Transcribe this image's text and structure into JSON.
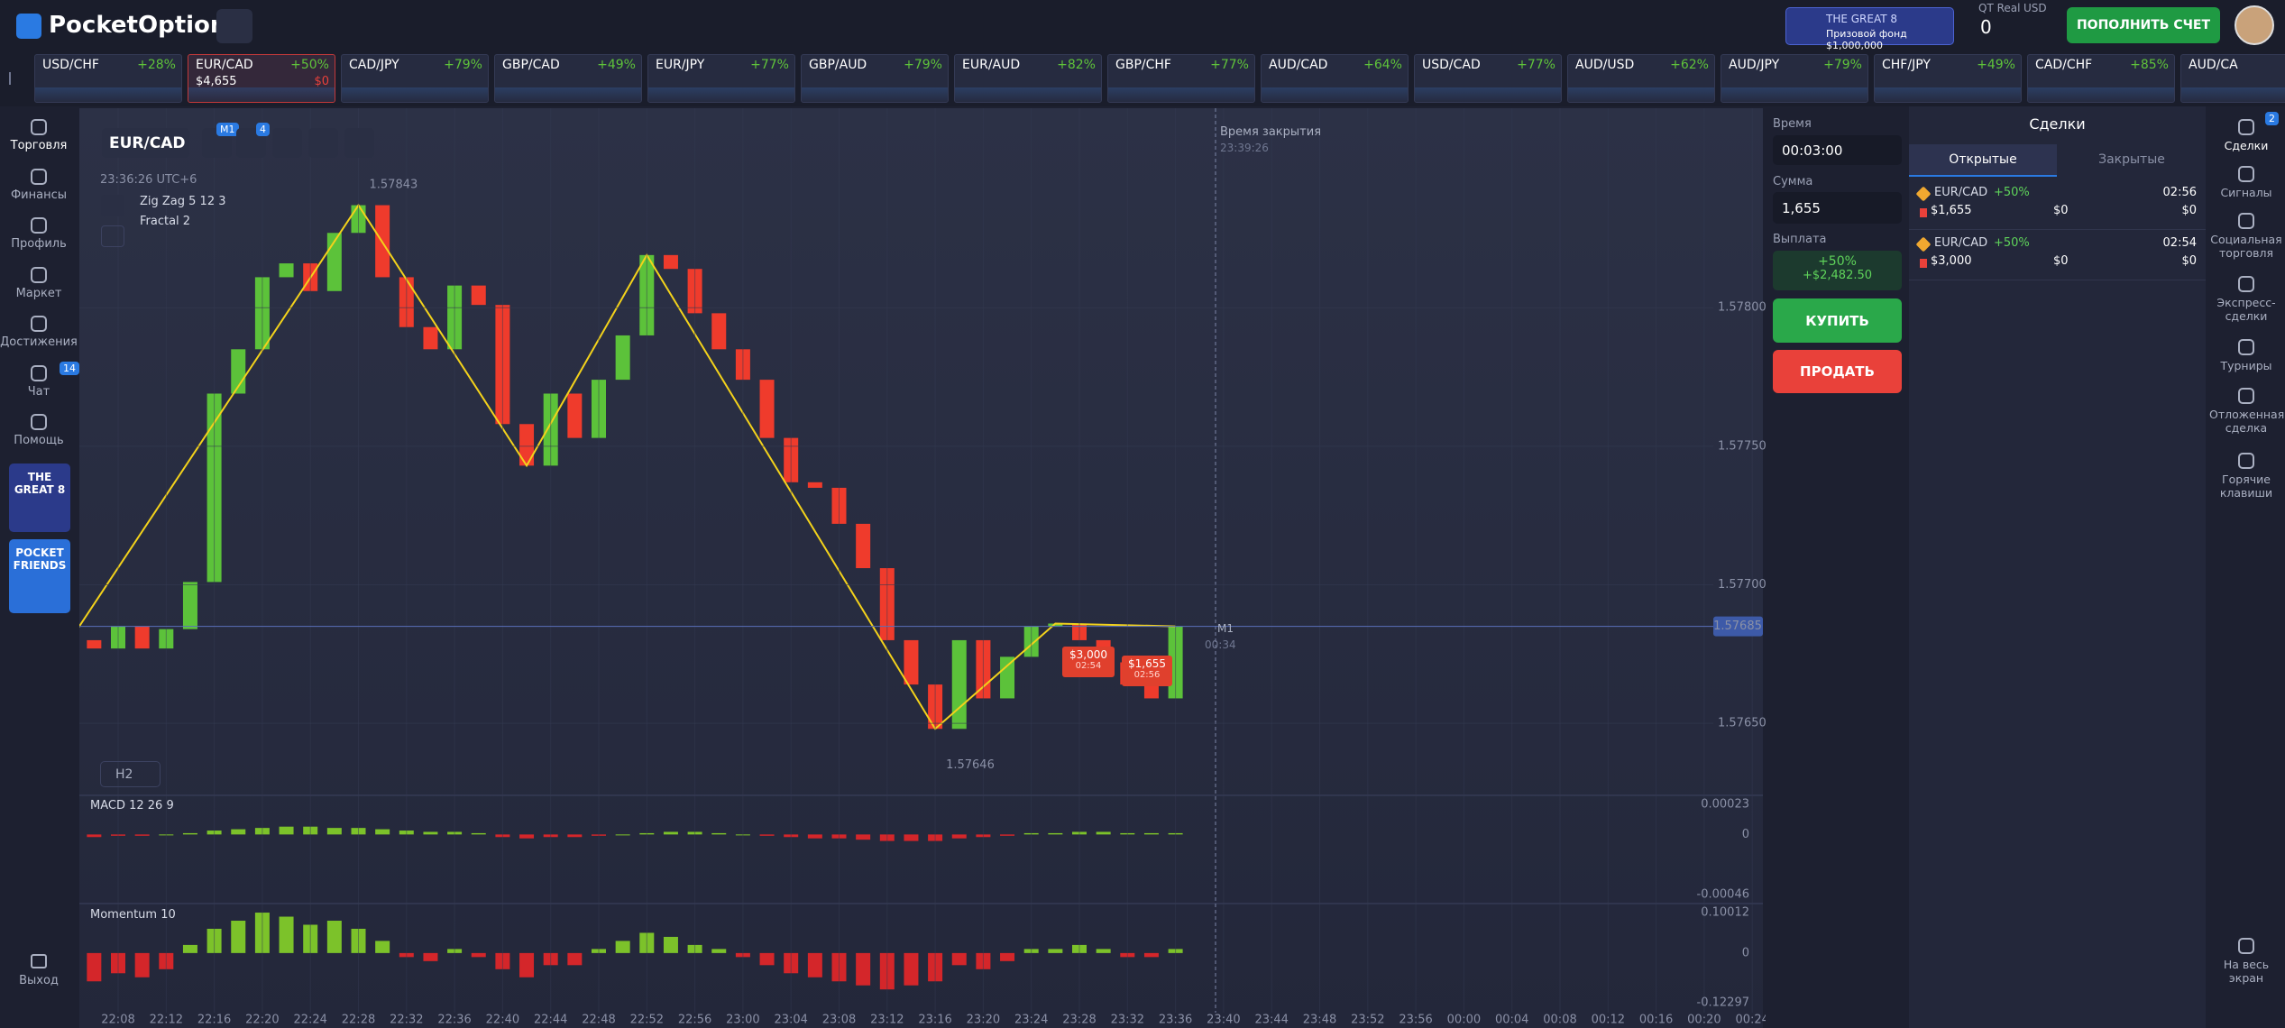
{
  "header": {
    "logo": "PocketOption",
    "banner_title": "THE GREAT 8",
    "banner_subtitle": "Призовой фонд $1,000,000",
    "account_type": "QT Real",
    "currency": "USD",
    "balance": "0",
    "deposit_button": "ПОПОЛНИТЬ СЧЕТ"
  },
  "ticker": [
    {
      "pair": "USD/CHF",
      "payout": "+28%"
    },
    {
      "pair": "EUR/CAD",
      "payout": "+50%",
      "amount": "$4,655",
      "profit": "$0"
    },
    {
      "pair": "CAD/JPY",
      "payout": "+79%"
    },
    {
      "pair": "GBP/CAD",
      "payout": "+49%"
    },
    {
      "pair": "EUR/JPY",
      "payout": "+77%"
    },
    {
      "pair": "GBP/AUD",
      "payout": "+79%"
    },
    {
      "pair": "EUR/AUD",
      "payout": "+82%"
    },
    {
      "pair": "GBP/CHF",
      "payout": "+77%"
    },
    {
      "pair": "AUD/CAD",
      "payout": "+64%"
    },
    {
      "pair": "USD/CAD",
      "payout": "+77%"
    },
    {
      "pair": "AUD/USD",
      "payout": "+62%"
    },
    {
      "pair": "AUD/JPY",
      "payout": "+79%"
    },
    {
      "pair": "CHF/JPY",
      "payout": "+49%"
    },
    {
      "pair": "CAD/CHF",
      "payout": "+85%"
    },
    {
      "pair": "AUD/CA"
    }
  ],
  "sidebar": [
    {
      "label": "Торговля"
    },
    {
      "label": "Финансы"
    },
    {
      "label": "Профиль"
    },
    {
      "label": "Маркет"
    },
    {
      "label": "Достижения"
    },
    {
      "label": "Чат",
      "badge": "14"
    },
    {
      "label": "Помощь"
    }
  ],
  "promos": [
    "THE GREAT 8",
    "POCKET FRIENDS"
  ],
  "logout": "Выход",
  "chart_toolbar": {
    "asset": "EUR/CAD",
    "timeframe_badge": "M1",
    "indicators_badge": "4",
    "timeframe": "H2"
  },
  "chart_data": {
    "type": "candlestick",
    "clock": "23:36:26 UTC+6",
    "indicators": [
      "Zig Zag 5 12 3",
      "Fractal 2"
    ],
    "closes": [
      1.5768,
      1.57677,
      1.57685,
      1.57677,
      1.57684,
      1.57701,
      1.57769,
      1.57785,
      1.57811,
      1.57816,
      1.57806,
      1.57827,
      1.57837,
      1.57811,
      1.57793,
      1.57785,
      1.57808,
      1.57801,
      1.57758,
      1.57743,
      1.57769,
      1.57753,
      1.57774,
      1.5779,
      1.57819,
      1.57814,
      1.57798,
      1.57785,
      1.57774,
      1.57753,
      1.57737,
      1.57735,
      1.57722,
      1.57706,
      1.5768,
      1.57664,
      1.57648,
      1.5768,
      1.57659,
      1.57674,
      1.57685,
      1.57686,
      1.5768,
      1.57672,
      1.57664,
      1.57659,
      1.57685
    ],
    "ylim": [
      1.57624,
      1.57872
    ],
    "yticks": [
      {
        "value": 1.5765,
        "label": "1.57650"
      },
      {
        "value": 1.577,
        "label": "1.57700"
      },
      {
        "value": 1.5775,
        "label": "1.57750"
      },
      {
        "value": 1.578,
        "label": "1.57800"
      }
    ],
    "high_label": 1.57843,
    "low_label": 1.57646,
    "current_price": 1.57685,
    "close_time_label": "Время закрытия",
    "close_time": "23:39:26",
    "period_label": "M1",
    "countdown": "00:34",
    "orders": [
      {
        "amount": "$3,000",
        "time": "02:54"
      },
      {
        "amount": "$1,655",
        "time": "02:56"
      }
    ],
    "x_labels": [
      "22:08",
      "22:12",
      "22:16",
      "22:20",
      "22:24",
      "22:28",
      "22:32",
      "22:36",
      "22:40",
      "22:44",
      "22:48",
      "22:52",
      "22:56",
      "23:00",
      "23:04",
      "23:08",
      "23:12",
      "23:16",
      "23:20",
      "23:24",
      "23:28",
      "23:32",
      "23:36",
      "23:40",
      "23:44",
      "23:48",
      "23:52",
      "23:56",
      "00:00",
      "00:04",
      "00:08",
      "00:12",
      "00:16",
      "00:20",
      "00:24"
    ],
    "macd": {
      "title": "MACD 12 26 9",
      "ylim": [
        -0.00053,
        0.0003
      ],
      "yticks": [
        0.00023,
        0,
        -0.00046
      ],
      "values": [
        -2e-05,
        -2e-05,
        -1e-05,
        -1e-05,
        0,
        1e-05,
        3e-05,
        4e-05,
        5e-05,
        6e-05,
        6e-05,
        5e-05,
        5e-05,
        4e-05,
        3e-05,
        2e-05,
        2e-05,
        1e-05,
        -2e-05,
        -3e-05,
        -2e-05,
        -2e-05,
        -1e-05,
        0,
        1e-05,
        2e-05,
        2e-05,
        1e-05,
        0,
        -1e-05,
        -2e-05,
        -3e-05,
        -3e-05,
        -4e-05,
        -5e-05,
        -5e-05,
        -5e-05,
        -3e-05,
        -2e-05,
        -1e-05,
        1e-05,
        1e-05,
        2e-05,
        2e-05,
        1e-05,
        1e-05,
        1e-05
      ]
    },
    "momentum": {
      "title": "Momentum 10",
      "ylim": [
        -0.1475,
        0.1224
      ],
      "yticks": [
        0.10012,
        0,
        -0.12297
      ],
      "values": [
        -0.06,
        -0.07,
        -0.05,
        -0.06,
        -0.04,
        0.02,
        0.06,
        0.08,
        0.1,
        0.09,
        0.07,
        0.08,
        0.06,
        0.03,
        -0.01,
        -0.02,
        0.01,
        -0.01,
        -0.04,
        -0.06,
        -0.03,
        -0.03,
        0.01,
        0.03,
        0.05,
        0.04,
        0.02,
        0.01,
        -0.01,
        -0.03,
        -0.05,
        -0.06,
        -0.07,
        -0.08,
        -0.09,
        -0.08,
        -0.07,
        -0.03,
        -0.04,
        -0.02,
        0.01,
        0.01,
        0.02,
        0.01,
        -0.01,
        -0.01,
        0.01
      ]
    }
  },
  "trade_panel": {
    "time_label": "Время",
    "time_value": "00:03:00",
    "amount_label": "Сумма",
    "amount_value": "1,655",
    "payout_label": "Выплата",
    "payout_percent": "+50%",
    "payout_value": "+$2,482.50",
    "buy": "КУПИТЬ",
    "sell": "ПРОДАТЬ"
  },
  "deals": {
    "title": "Сделки",
    "tabs": [
      "Открытые",
      "Закрытые"
    ],
    "trades": [
      {
        "pair": "EUR/CAD",
        "payout": "+50%",
        "time": "02:56",
        "amount": "$1,655",
        "profit": "$0",
        "result": "$0"
      },
      {
        "pair": "EUR/CAD",
        "payout": "+50%",
        "time": "02:54",
        "amount": "$3,000",
        "profit": "$0",
        "result": "$0"
      }
    ]
  },
  "right_sidebar": [
    {
      "label": "Сделки",
      "badge": "2"
    },
    {
      "label": "Сигналы"
    },
    {
      "label": "Социальная торговля"
    },
    {
      "label": "Экспресс-сделки"
    },
    {
      "label": "Турниры"
    },
    {
      "label": "Отложенная сделка"
    },
    {
      "label": "Горячие клавиши"
    },
    {
      "label": "На весь экран"
    }
  ]
}
